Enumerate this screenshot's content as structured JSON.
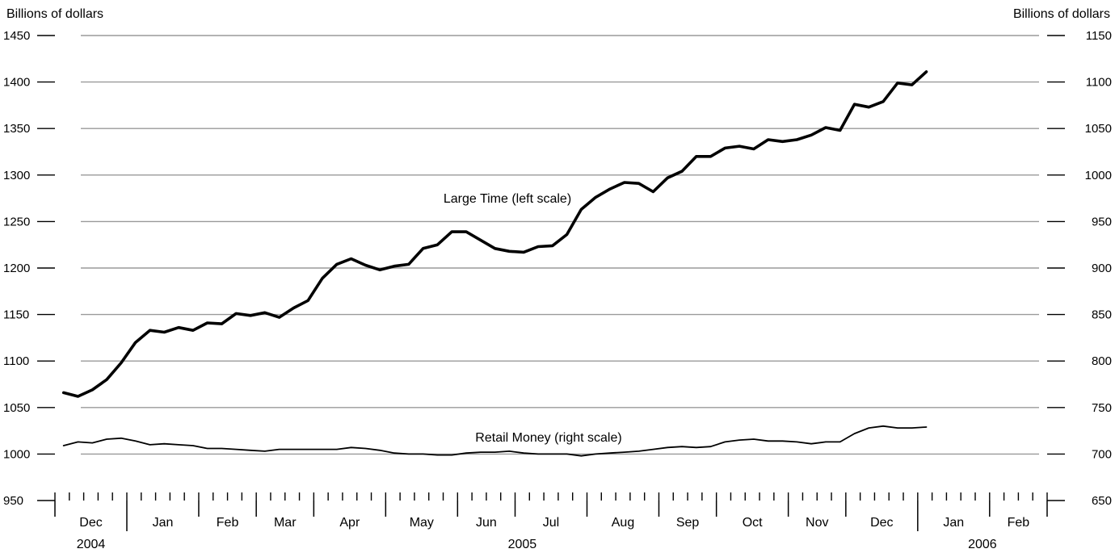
{
  "chart_data": {
    "type": "line",
    "left_axis_label": "Billions of dollars",
    "right_axis_label": "Billions of dollars",
    "left_ylim": [
      950,
      1450
    ],
    "right_ylim": [
      650,
      1150
    ],
    "left_ticks": [
      "950",
      "1000",
      "1050",
      "1100",
      "1150",
      "1200",
      "1250",
      "1300",
      "1350",
      "1400",
      "1450"
    ],
    "right_ticks": [
      "650",
      "700",
      "750",
      "800",
      "850",
      "900",
      "950",
      "1000",
      "1050",
      "1100",
      "1150"
    ],
    "grid": true,
    "months": [
      "Dec",
      "Jan",
      "Feb",
      "Mar",
      "Apr",
      "May",
      "Jun",
      "Jul",
      "Aug",
      "Sep",
      "Oct",
      "Nov",
      "Dec",
      "Jan",
      "Feb"
    ],
    "month_weeks": [
      5,
      5,
      4,
      4,
      5,
      5,
      4,
      5,
      5,
      4,
      5,
      4,
      5,
      5,
      4
    ],
    "years": [
      "2004",
      "2005",
      "2006"
    ],
    "series": [
      {
        "name": "Large Time (left scale)",
        "axis": "left",
        "line_width": 3.6,
        "values": [
          1066,
          1062,
          1069,
          1080,
          1098,
          1120,
          1133,
          1131,
          1136,
          1133,
          1141,
          1140,
          1151,
          1149,
          1152,
          1147,
          1157,
          1165,
          1189,
          1204,
          1210,
          1203,
          1198,
          1202,
          1204,
          1221,
          1225,
          1239,
          1239,
          1230,
          1221,
          1218,
          1217,
          1223,
          1224,
          1236,
          1263,
          1276,
          1285,
          1292,
          1291,
          1282,
          1297,
          1304,
          1320,
          1320,
          1329,
          1331,
          1328,
          1338,
          1336,
          1338,
          1343,
          1351,
          1348,
          1376,
          1373,
          1379,
          1399,
          1397,
          1411
        ]
      },
      {
        "name": "Retail Money (right scale)",
        "axis": "right",
        "line_width": 1.8,
        "values": [
          709,
          713,
          712,
          716,
          717,
          714,
          710,
          711,
          710,
          709,
          706,
          706,
          705,
          704,
          703,
          705,
          705,
          705,
          705,
          705,
          707,
          706,
          704,
          701,
          700,
          700,
          699,
          699,
          701,
          702,
          702,
          703,
          701,
          700,
          700,
          700,
          698,
          700,
          701,
          702,
          703,
          705,
          707,
          708,
          707,
          708,
          713,
          715,
          716,
          714,
          714,
          713,
          711,
          713,
          713,
          722,
          728,
          730,
          728,
          728,
          729
        ]
      }
    ]
  }
}
